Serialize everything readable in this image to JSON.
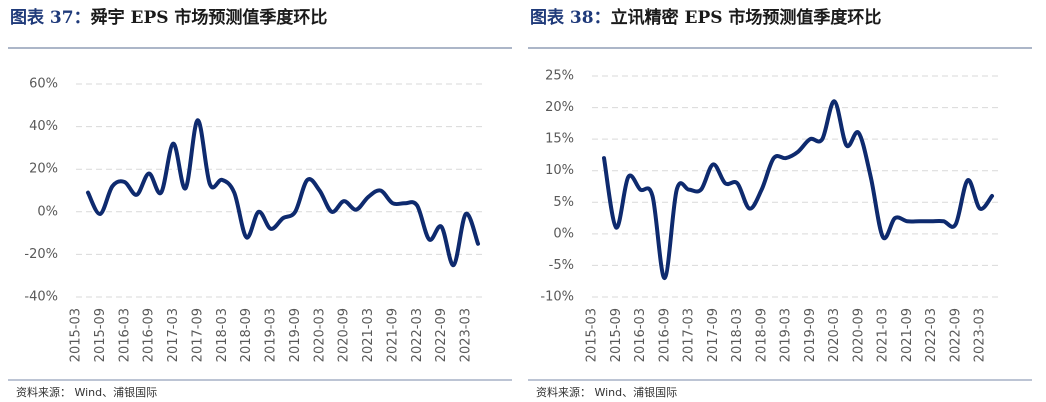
{
  "chart_data": [
    {
      "type": "line",
      "label": "图表 37：",
      "title": "舜宇 EPS 市场预测值季度环比",
      "source": "资料来源： Wind、浦银国际",
      "categories": [
        "2015-03",
        null,
        "2015-09",
        null,
        "2016-03",
        null,
        "2016-09",
        null,
        "2017-03",
        null,
        "2017-09",
        null,
        "2018-03",
        null,
        "2018-09",
        null,
        "2019-03",
        null,
        "2019-09",
        null,
        "2020-03",
        null,
        "2020-09",
        null,
        "2021-03",
        null,
        "2021-09",
        null,
        "2022-03",
        null,
        "2022-09",
        null,
        "2023-03"
      ],
      "series": [
        {
          "name": "舜宇",
          "color": "#0e2a6e",
          "values": [
            9,
            -1,
            12,
            14,
            8,
            18,
            9,
            32,
            11,
            43,
            13,
            15,
            9,
            -12,
            0,
            -8,
            -3,
            0,
            15,
            10,
            0,
            5,
            1,
            7,
            10,
            4,
            4,
            3,
            -13,
            -7,
            -25,
            -1,
            -15
          ]
        }
      ],
      "ylim": [
        -40,
        60
      ],
      "yticks": [
        {
          "value": -40,
          "label": "-40%"
        },
        {
          "value": -20,
          "label": "-20%"
        },
        {
          "value": 0,
          "label": "0%"
        },
        {
          "value": 20,
          "label": "20%"
        },
        {
          "value": 40,
          "label": "40%"
        },
        {
          "value": 60,
          "label": "60%"
        }
      ],
      "grid": true
    },
    {
      "type": "line",
      "label": "图表 38：",
      "title": "立讯精密 EPS 市场预测值季度环比",
      "source": "资料来源： Wind、浦银国际",
      "categories": [
        "2015-03",
        null,
        "2015-09",
        null,
        "2016-03",
        null,
        "2016-09",
        null,
        "2017-03",
        null,
        "2017-09",
        null,
        "2018-03",
        null,
        "2018-09",
        null,
        "2019-03",
        null,
        "2019-09",
        null,
        "2020-03",
        null,
        "2020-09",
        null,
        "2021-03",
        null,
        "2021-09",
        null,
        "2022-03",
        null,
        "2022-09",
        null,
        "2023-03"
      ],
      "series": [
        {
          "name": "立讯精密",
          "color": "#0e2a6e",
          "values": [
            12,
            1,
            9,
            7,
            6,
            -7,
            7,
            7,
            7,
            11,
            8,
            8,
            4,
            7,
            12,
            12,
            13,
            15,
            15,
            21,
            14,
            16,
            9,
            -0.5,
            2.5,
            2,
            2,
            2,
            2,
            1.5,
            8.5,
            4,
            6
          ]
        }
      ],
      "ylim": [
        -10,
        25
      ],
      "yticks": [
        {
          "value": -10,
          "label": "-10%"
        },
        {
          "value": -5,
          "label": "-5%"
        },
        {
          "value": 0,
          "label": "0%"
        },
        {
          "value": 5,
          "label": "5%"
        },
        {
          "value": 10,
          "label": "10%"
        },
        {
          "value": 15,
          "label": "15%"
        },
        {
          "value": 20,
          "label": "20%"
        },
        {
          "value": 25,
          "label": "25%"
        }
      ],
      "grid": true
    }
  ]
}
